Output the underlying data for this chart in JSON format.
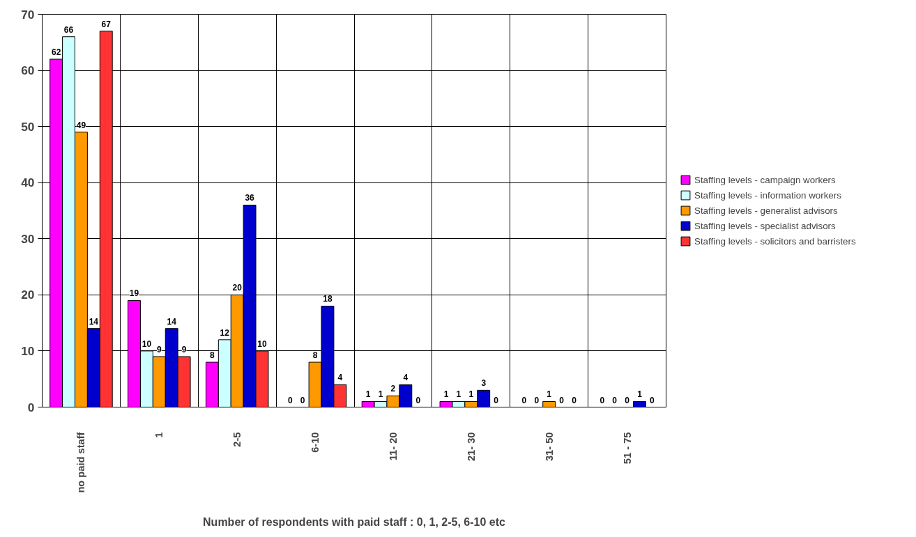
{
  "chart_data": {
    "type": "bar",
    "xlabel": "Number of respondents with paid staff : 0, 1, 2-5, 6-10 etc",
    "categories": [
      "no paid staff",
      "1",
      "2-5",
      "6-10",
      "11- 20",
      "21- 30",
      "31- 50",
      "51 - 75"
    ],
    "series": [
      {
        "name": "Staffing levels - campaign workers",
        "color": "#ff00ff",
        "values": [
          62,
          19,
          8,
          0,
          1,
          1,
          0,
          0
        ]
      },
      {
        "name": "Staffing levels - information workers",
        "color": "#ccffff",
        "values": [
          66,
          10,
          12,
          0,
          1,
          1,
          0,
          0
        ]
      },
      {
        "name": "Staffing levels - generalist advisors",
        "color": "#ff9900",
        "values": [
          49,
          9,
          20,
          8,
          2,
          1,
          1,
          0
        ]
      },
      {
        "name": "Staffing levels - specialist advisors",
        "color": "#0000cc",
        "values": [
          14,
          14,
          36,
          18,
          4,
          3,
          0,
          1
        ]
      },
      {
        "name": "Staffing levels - solicitors and barristers",
        "color": "#ff3333",
        "values": [
          67,
          9,
          10,
          4,
          0,
          0,
          0,
          0
        ]
      }
    ],
    "ylim": [
      0,
      70
    ],
    "yticks": [
      0,
      10,
      20,
      30,
      40,
      50,
      60,
      70
    ],
    "grid": true,
    "legend": "right",
    "data_labels": true
  }
}
